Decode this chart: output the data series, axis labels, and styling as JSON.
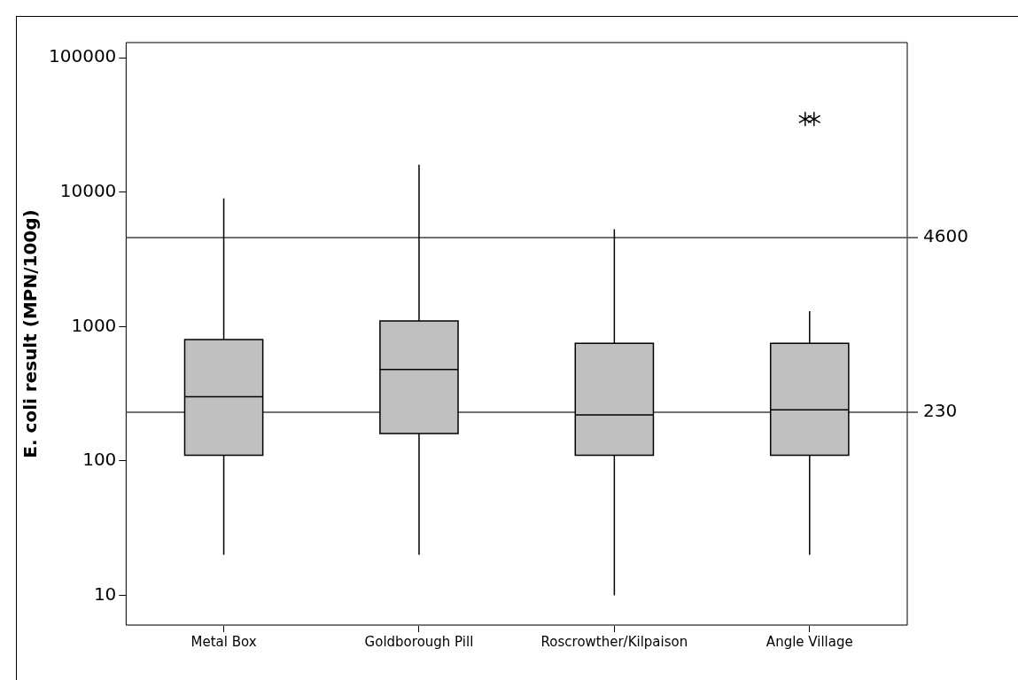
{
  "chart_data": {
    "type": "box",
    "ylabel": "E. coli result (MPN/100g)",
    "categories": [
      "Metal Box",
      "Goldborough Pill",
      "Roscrowther/Kilpaison",
      "Angle Village"
    ],
    "boxes": [
      {
        "low": 20,
        "q1": 110,
        "median": 300,
        "q3": 800,
        "high": 9000
      },
      {
        "low": 20,
        "q1": 160,
        "median": 480,
        "q3": 1100,
        "high": 16000
      },
      {
        "low": 10,
        "q1": 110,
        "median": 220,
        "q3": 750,
        "high": 5300
      },
      {
        "low": 20,
        "q1": 110,
        "median": 240,
        "q3": 750,
        "high": 1300,
        "outliers": [
          35000,
          35000
        ]
      }
    ],
    "color": "#c0c0c0",
    "log": true,
    "ylim": [
      6,
      130000
    ],
    "yticks": [
      10,
      100,
      1000,
      10000,
      100000
    ],
    "grid": false,
    "legend": false,
    "marker": "star",
    "ref_lines": [
      {
        "axis": "y",
        "value": 4600,
        "label": "4600"
      },
      {
        "axis": "y",
        "value": 230,
        "label": "230"
      }
    ]
  }
}
